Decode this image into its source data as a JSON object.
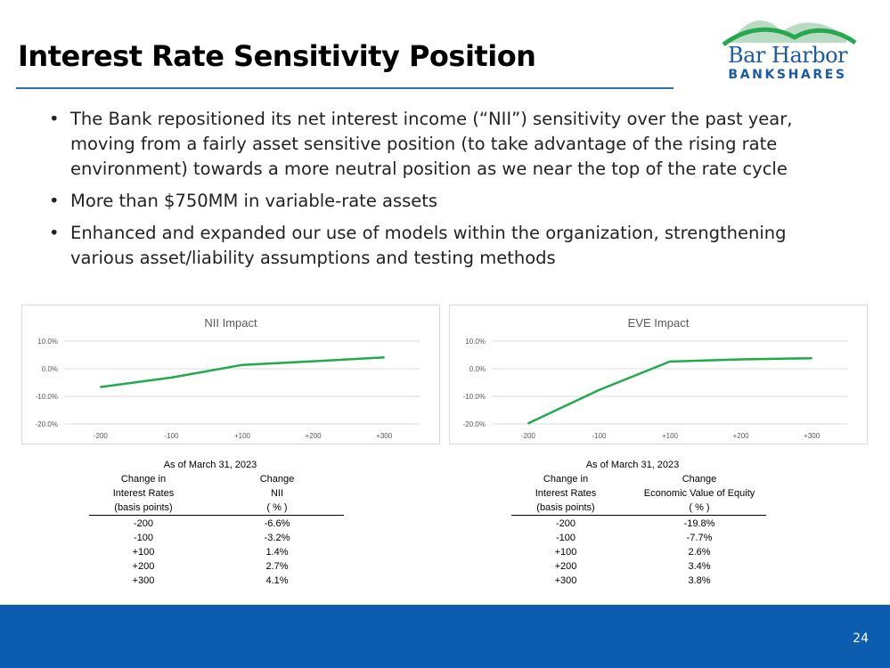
{
  "slide": {
    "title": "Interest Rate Sensitivity Position",
    "page_number": "24",
    "logo": {
      "line1": "Bar Harbor",
      "line2": "BANKSHARES"
    },
    "bullets": [
      "The Bank repositioned its net interest income (“NII”) sensitivity over the past year, moving from a fairly asset sensitive position (to take advantage of the rising rate environment) towards a more neutral position as we near the top of the rate cycle",
      "More than $750MM in variable-rate assets",
      "Enhanced and expanded our use of models within the organization, strengthening various asset/liability assumptions and testing methods"
    ],
    "bullet_char": "•"
  },
  "colors": {
    "line": "#1faa4b",
    "grid": "#d9d9d9",
    "footer": "#0c5cb0",
    "accent": "#1a5aa6"
  },
  "chart_data": [
    {
      "type": "line",
      "title": "NII Impact",
      "categories": [
        "-200",
        "-100",
        "+100",
        "+200",
        "+300"
      ],
      "series": [
        {
          "name": "NII Impact",
          "values": [
            -6.6,
            -3.2,
            1.4,
            2.7,
            4.1
          ]
        }
      ],
      "ylim": [
        -20,
        10
      ],
      "yticks": [
        10,
        0,
        -10,
        -20
      ],
      "ytick_labels": [
        "10.0%",
        "0.0%",
        "-10.0%",
        "-20.0%"
      ],
      "grid": true
    },
    {
      "type": "line",
      "title": "EVE Impact",
      "categories": [
        "-200",
        "-100",
        "+100",
        "+200",
        "+300"
      ],
      "series": [
        {
          "name": "EVE Impact",
          "values": [
            -19.8,
            -7.7,
            2.6,
            3.4,
            3.8
          ]
        }
      ],
      "ylim": [
        -20,
        10
      ],
      "yticks": [
        10,
        0,
        -10,
        -20
      ],
      "ytick_labels": [
        "10.0%",
        "0.0%",
        "-10.0%",
        "-20.0%"
      ],
      "grid": true
    }
  ],
  "tables": [
    {
      "as_of": "As of March 31, 2023",
      "col1": [
        "Change in",
        "Interest Rates",
        "(basis points)"
      ],
      "col2": [
        "Change",
        "NII",
        "( % )"
      ],
      "rows": [
        [
          "-200",
          "-6.6%"
        ],
        [
          "-100",
          "-3.2%"
        ],
        [
          "+100",
          "1.4%"
        ],
        [
          "+200",
          "2.7%"
        ],
        [
          "+300",
          "4.1%"
        ]
      ]
    },
    {
      "as_of": "As of March 31, 2023",
      "col1": [
        "Change in",
        "Interest Rates",
        "(basis points)"
      ],
      "col2": [
        "Change",
        "Economic Value of Equity",
        "( % )"
      ],
      "rows": [
        [
          "-200",
          "-19.8%"
        ],
        [
          "-100",
          "-7.7%"
        ],
        [
          "+100",
          "2.6%"
        ],
        [
          "+200",
          "3.4%"
        ],
        [
          "+300",
          "3.8%"
        ]
      ]
    }
  ]
}
